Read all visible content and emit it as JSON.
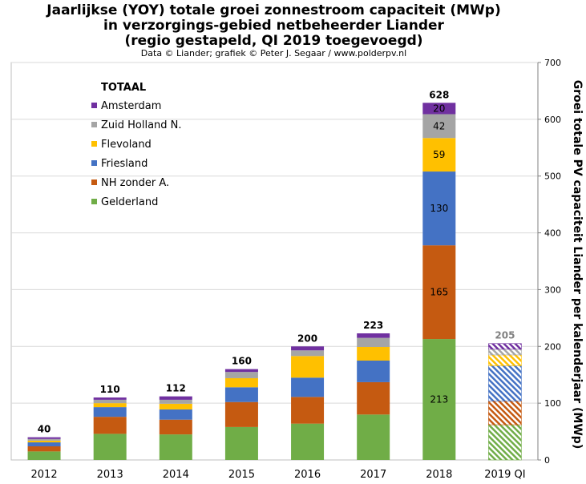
{
  "title_lines": [
    "Jaarlijkse (YOY) totale groei zonnestroom capaciteit (MWp)",
    "in verzorgings-gebied netbeheerder Liander",
    "(regio gestapeld, QI 2019 toegevoegd)"
  ],
  "subtitle": "Data © Liander; grafiek © Peter J. Segaar / www.polderpv.nl",
  "chart_data": {
    "type": "bar",
    "stacked": true,
    "categories": [
      "2012",
      "2013",
      "2014",
      "2015",
      "2016",
      "2017",
      "2018",
      "2019 QI"
    ],
    "ylabel": "Groei totale PV capaciteit Liander per kalenderjaar (MWp)",
    "ylim": [
      0,
      700
    ],
    "yticks": [
      0,
      100,
      200,
      300,
      400,
      500,
      600,
      700
    ],
    "y_axis_side": "right",
    "grid": true,
    "legend": {
      "title": "TOTAAL",
      "position": "top-left"
    },
    "hatched_categories": [
      "2019 QI"
    ],
    "series": [
      {
        "name": "Gelderland",
        "color": "#70ad47",
        "values": [
          15,
          46,
          45,
          58,
          64,
          80,
          213,
          62
        ]
      },
      {
        "name": "NH zonder A.",
        "color": "#c55a11",
        "values": [
          9,
          30,
          26,
          44,
          47,
          57,
          165,
          42
        ]
      },
      {
        "name": "Friesland",
        "color": "#4472c4",
        "values": [
          7,
          17,
          18,
          26,
          34,
          38,
          130,
          62
        ]
      },
      {
        "name": "Flevoland",
        "color": "#ffc000",
        "values": [
          3,
          7,
          10,
          16,
          38,
          24,
          59,
          19
        ]
      },
      {
        "name": "Zuid Holland N.",
        "color": "#a5a5a5",
        "values": [
          3,
          6,
          7,
          11,
          10,
          16,
          42,
          10
        ]
      },
      {
        "name": "Amsterdam",
        "color": "#7030a0",
        "values": [
          3,
          4,
          6,
          5,
          7,
          8,
          20,
          10
        ]
      }
    ],
    "segment_labels": {
      "category": "2018",
      "values": [
        "213",
        "165",
        "130",
        "59",
        "42",
        "20"
      ]
    },
    "totals": [
      "40",
      "110",
      "112",
      "160",
      "200",
      "223",
      "628",
      "205"
    ],
    "total_colors": [
      "#000000",
      "#000000",
      "#000000",
      "#000000",
      "#000000",
      "#000000",
      "#000000",
      "#808080"
    ]
  }
}
